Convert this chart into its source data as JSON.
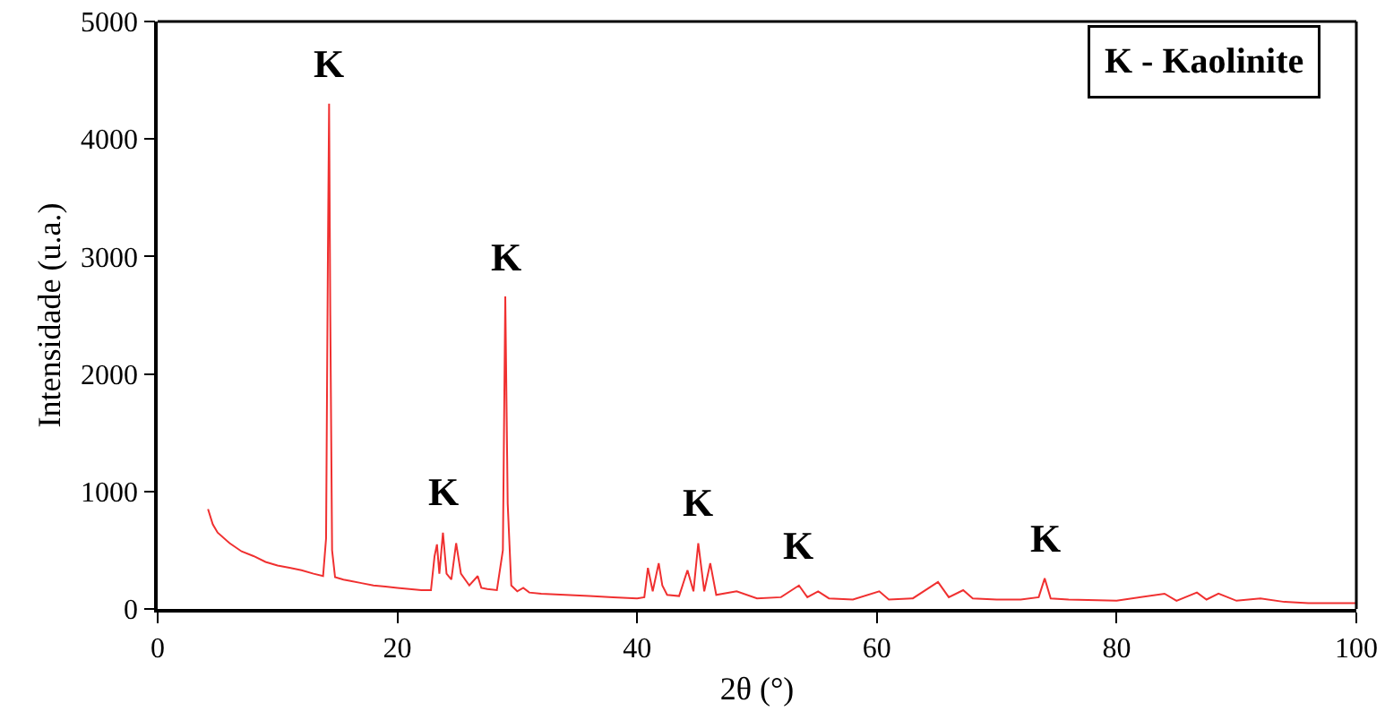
{
  "chart_data": {
    "type": "line",
    "xlabel": "2θ (°)",
    "ylabel": "Intensidade (u.a.)",
    "xlim": [
      0,
      100
    ],
    "xticks": [
      0,
      20,
      40,
      60,
      80,
      100
    ],
    "ylim": [
      0,
      5000
    ],
    "yticks": [
      0,
      1000,
      2000,
      3000,
      4000,
      5000
    ],
    "grid": false,
    "legend": false,
    "marker": "none",
    "line_style": "solid",
    "series": [
      {
        "color": "#f03030",
        "x": [
          4.2,
          4.6,
          5,
          6,
          7,
          8,
          9,
          10,
          11,
          12,
          13,
          13.8,
          14.05,
          14.2,
          14.3,
          14.4,
          14.55,
          14.8,
          15.5,
          16,
          17,
          18,
          19,
          20,
          21,
          22,
          22.8,
          23.1,
          23.3,
          23.5,
          23.8,
          24.1,
          24.5,
          24.9,
          25.3,
          26,
          26.7,
          27,
          27.5,
          28.3,
          28.8,
          29,
          29.2,
          29.5,
          30,
          30.5,
          31,
          32,
          34,
          36,
          38,
          40,
          40.6,
          40.9,
          41.3,
          41.8,
          42.1,
          42.5,
          43.5,
          44.2,
          44.7,
          45.1,
          45.6,
          46.1,
          46.6,
          48.3,
          50,
          52,
          53.5,
          54.2,
          55.1,
          56,
          58,
          60.2,
          61,
          63,
          65.1,
          66,
          67.2,
          68,
          70,
          72,
          73.5,
          74,
          74.5,
          76,
          80,
          84,
          85,
          86.7,
          87.5,
          88.5,
          90,
          92,
          94,
          96,
          98,
          100
        ],
        "values": [
          850,
          720,
          650,
          560,
          490,
          450,
          400,
          370,
          350,
          330,
          300,
          280,
          600,
          3000,
          4300,
          2500,
          500,
          270,
          250,
          240,
          220,
          200,
          190,
          180,
          170,
          160,
          160,
          450,
          550,
          300,
          650,
          300,
          250,
          560,
          300,
          200,
          280,
          180,
          170,
          160,
          500,
          2660,
          900,
          200,
          150,
          180,
          140,
          130,
          120,
          110,
          100,
          90,
          100,
          350,
          150,
          390,
          200,
          120,
          110,
          330,
          150,
          560,
          150,
          390,
          120,
          150,
          90,
          100,
          200,
          100,
          150,
          90,
          80,
          150,
          80,
          90,
          230,
          100,
          160,
          90,
          80,
          80,
          100,
          260,
          90,
          80,
          70,
          130,
          70,
          140,
          80,
          130,
          70,
          90,
          60,
          50,
          50,
          50
        ]
      }
    ],
    "annotations": [
      {
        "text": "K",
        "x": 14.3,
        "y": 4300
      },
      {
        "text": "K",
        "x": 23.8,
        "y": 650
      },
      {
        "text": "K",
        "x": 29,
        "y": 2660
      },
      {
        "text": "K",
        "x": 45.1,
        "y": 560
      },
      {
        "text": "K",
        "x": 53.5,
        "y": 200
      },
      {
        "text": "K",
        "x": 74,
        "y": 260
      },
      "K - Kaolinite"
    ]
  }
}
